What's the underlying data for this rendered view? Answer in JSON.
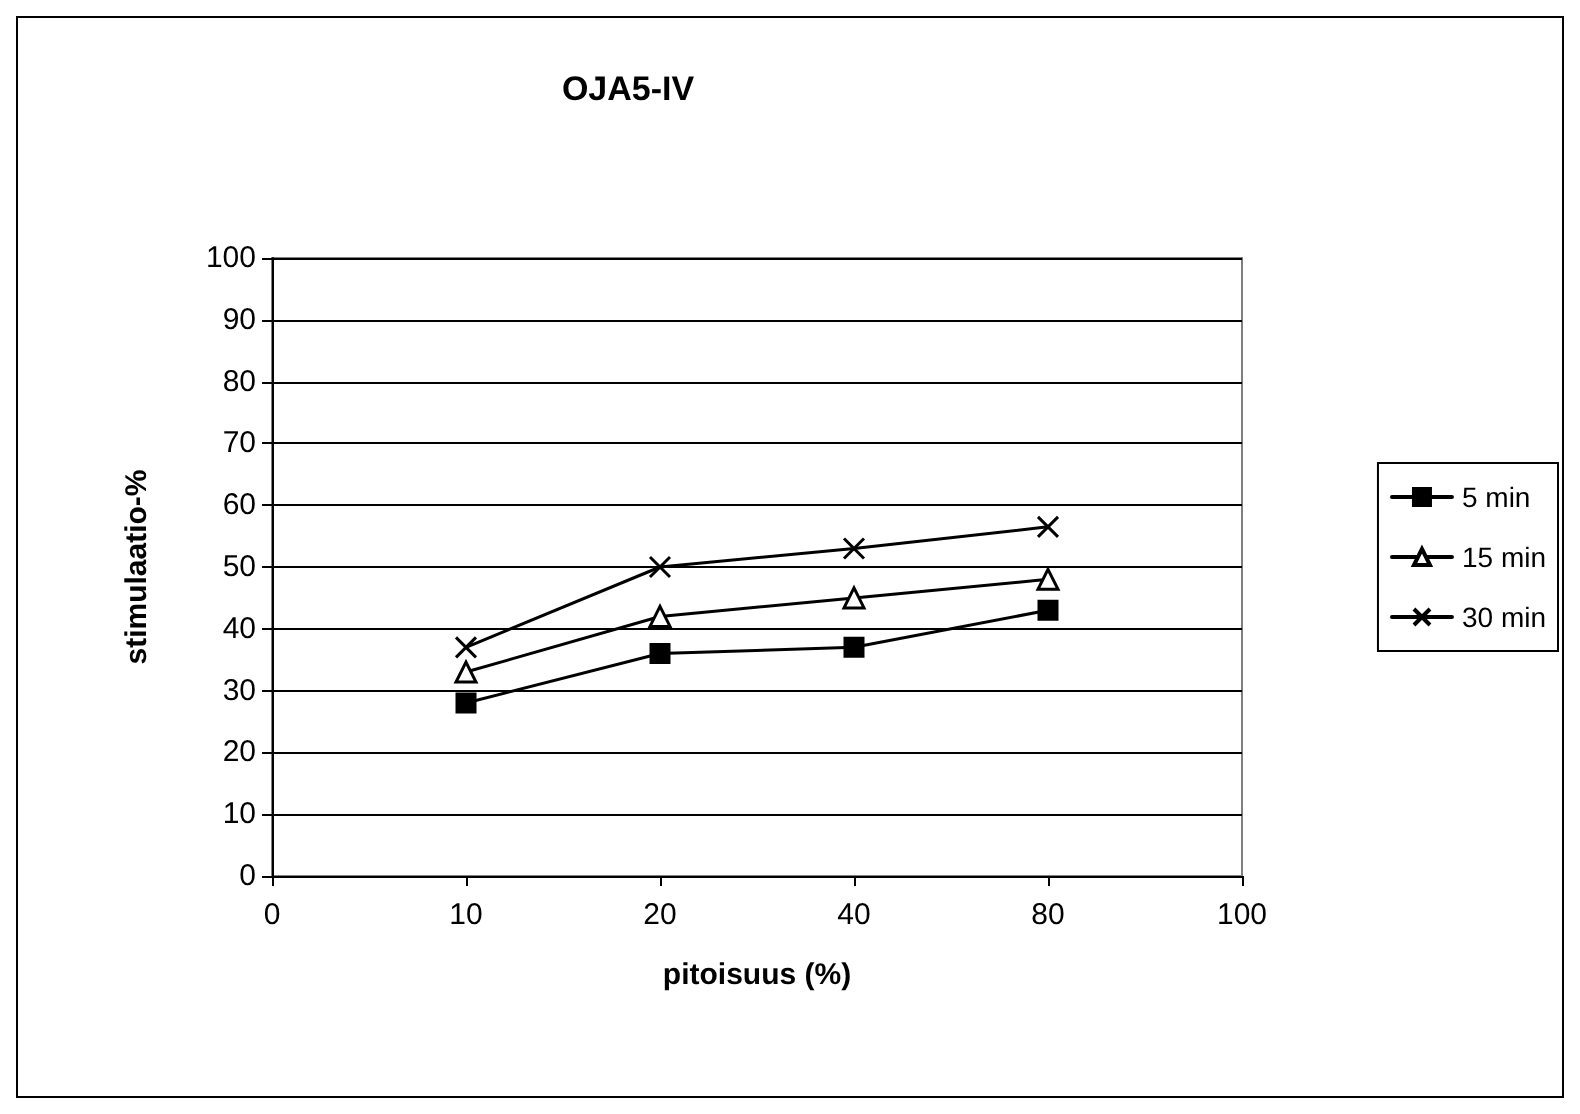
{
  "chart_data": {
    "type": "line",
    "title": "OJA5-IV",
    "xlabel": "pitoisuus (%)",
    "ylabel": "stimulaatio-%",
    "categories": [
      "0",
      "10",
      "20",
      "40",
      "80",
      "100"
    ],
    "series": [
      {
        "name": "5 min",
        "color": "#000000",
        "marker": "square",
        "values": [
          null,
          28,
          36,
          37,
          43,
          null
        ]
      },
      {
        "name": "15 min",
        "color": "#000000",
        "marker": "triangle",
        "values": [
          null,
          33,
          42,
          45,
          48,
          null
        ]
      },
      {
        "name": "30 min",
        "color": "#000000",
        "marker": "cross",
        "values": [
          null,
          37,
          50,
          53,
          56.5,
          null
        ]
      }
    ],
    "ylim": [
      0,
      100
    ],
    "yticks": [
      0,
      10,
      20,
      30,
      40,
      50,
      60,
      70,
      80,
      90,
      100
    ],
    "grid": "y",
    "legend": "right",
    "line_style": "solid"
  }
}
